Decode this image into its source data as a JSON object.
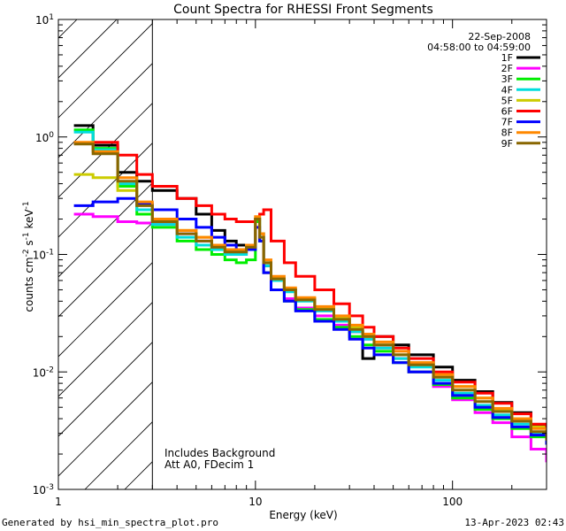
{
  "chart_data": {
    "type": "line",
    "title": "Count Spectra for RHESSI Front Segments",
    "xlabel": "Energy (keV)",
    "ylabel": "counts cm^-2 s^-1 keV^-1",
    "xscale": "log",
    "yscale": "log",
    "xlim": [
      1,
      300
    ],
    "ylim": [
      0.001,
      10
    ],
    "x_ticks": [
      1,
      10,
      100
    ],
    "x_tick_labels": [
      "1",
      "10",
      "100"
    ],
    "y_ticks": [
      0.001,
      0.01,
      0.1,
      1,
      10
    ],
    "y_tick_labels": [
      "10^-3",
      "10^-2",
      "10^-1",
      "10^0",
      "10^1"
    ],
    "hatched_region": [
      1,
      3
    ],
    "date": "22-Sep-2008",
    "time_range": "04:58:00 to 04:59:00",
    "annotations": [
      "Includes Background",
      "Att A0, FDecim 1"
    ],
    "series": [
      {
        "name": "1F",
        "color": "#000000",
        "x": [
          1.2,
          1.5,
          2,
          2.5,
          3,
          4,
          5,
          6,
          7,
          8,
          9,
          10,
          10.5,
          11,
          12,
          14,
          16,
          20,
          25,
          30,
          35,
          40,
          50,
          60,
          80,
          100,
          130,
          160,
          200,
          250,
          300
        ],
        "y": [
          1.25,
          0.85,
          0.5,
          0.42,
          0.35,
          0.3,
          0.22,
          0.16,
          0.13,
          0.12,
          0.11,
          0.2,
          0.15,
          0.08,
          0.06,
          0.05,
          0.042,
          0.035,
          0.028,
          0.022,
          0.013,
          0.02,
          0.017,
          0.014,
          0.011,
          0.0085,
          0.0068,
          0.0055,
          0.0045,
          0.0035,
          0.0025
        ]
      },
      {
        "name": "2F",
        "color": "#ff00ff",
        "x": [
          1.2,
          1.5,
          2,
          2.5,
          3,
          4,
          5,
          6,
          7,
          8,
          9,
          10,
          10.5,
          11,
          12,
          14,
          16,
          20,
          25,
          30,
          35,
          40,
          50,
          60,
          80,
          100,
          130,
          160,
          200,
          250,
          300
        ],
        "y": [
          0.22,
          0.21,
          0.19,
          0.185,
          0.18,
          0.15,
          0.13,
          0.11,
          0.1,
          0.1,
          0.11,
          0.17,
          0.13,
          0.07,
          0.05,
          0.042,
          0.035,
          0.03,
          0.025,
          0.022,
          0.019,
          0.016,
          0.013,
          0.01,
          0.0075,
          0.0058,
          0.0045,
          0.0037,
          0.0028,
          0.0022,
          0.0017
        ]
      },
      {
        "name": "3F",
        "color": "#00ee00",
        "x": [
          1.2,
          1.5,
          2,
          2.5,
          3,
          4,
          5,
          6,
          7,
          8,
          9,
          10,
          10.5,
          11,
          12,
          14,
          16,
          20,
          25,
          30,
          35,
          40,
          50,
          60,
          80,
          100,
          130,
          160,
          200,
          250,
          300
        ],
        "y": [
          1.15,
          0.8,
          0.38,
          0.22,
          0.17,
          0.13,
          0.11,
          0.1,
          0.09,
          0.085,
          0.09,
          0.19,
          0.13,
          0.07,
          0.05,
          0.04,
          0.034,
          0.028,
          0.024,
          0.02,
          0.017,
          0.015,
          0.012,
          0.01,
          0.0078,
          0.006,
          0.0048,
          0.004,
          0.0033,
          0.0028,
          0.0025
        ]
      },
      {
        "name": "4F",
        "color": "#00dddd",
        "x": [
          1.2,
          1.5,
          2,
          2.5,
          3,
          4,
          5,
          6,
          7,
          8,
          9,
          10,
          10.5,
          11,
          12,
          14,
          16,
          20,
          25,
          30,
          35,
          40,
          50,
          60,
          80,
          100,
          130,
          160,
          200,
          250,
          300
        ],
        "y": [
          1.1,
          0.78,
          0.4,
          0.24,
          0.18,
          0.14,
          0.12,
          0.11,
          0.1,
          0.1,
          0.11,
          0.2,
          0.14,
          0.08,
          0.06,
          0.048,
          0.04,
          0.033,
          0.027,
          0.022,
          0.019,
          0.016,
          0.013,
          0.011,
          0.0085,
          0.0066,
          0.0052,
          0.0043,
          0.0036,
          0.003,
          0.0026
        ]
      },
      {
        "name": "5F",
        "color": "#cccc00",
        "x": [
          1.2,
          1.5,
          2,
          2.5,
          3,
          4,
          5,
          6,
          7,
          8,
          9,
          10,
          10.5,
          11,
          12,
          14,
          16,
          20,
          25,
          30,
          35,
          40,
          50,
          60,
          80,
          100,
          130,
          160,
          200,
          250,
          300
        ],
        "y": [
          0.48,
          0.45,
          0.35,
          0.27,
          0.2,
          0.16,
          0.14,
          0.12,
          0.11,
          0.11,
          0.12,
          0.2,
          0.15,
          0.085,
          0.062,
          0.05,
          0.042,
          0.035,
          0.029,
          0.024,
          0.02,
          0.017,
          0.014,
          0.012,
          0.0095,
          0.0075,
          0.006,
          0.0048,
          0.004,
          0.0034,
          0.0028
        ]
      },
      {
        "name": "6F",
        "color": "#ff0000",
        "x": [
          1.2,
          1.5,
          2,
          2.5,
          3,
          4,
          5,
          6,
          7,
          8,
          9,
          10,
          10.5,
          11,
          12,
          14,
          16,
          20,
          25,
          30,
          35,
          40,
          50,
          60,
          80,
          100,
          130,
          160,
          200,
          250,
          300
        ],
        "y": [
          0.88,
          0.9,
          0.7,
          0.48,
          0.38,
          0.3,
          0.26,
          0.22,
          0.2,
          0.19,
          0.19,
          0.2,
          0.22,
          0.24,
          0.13,
          0.085,
          0.065,
          0.05,
          0.038,
          0.03,
          0.024,
          0.02,
          0.016,
          0.013,
          0.01,
          0.0082,
          0.0066,
          0.0054,
          0.0044,
          0.0036,
          0.0029
        ]
      },
      {
        "name": "7F",
        "color": "#0000ff",
        "x": [
          1.2,
          1.5,
          2,
          2.5,
          3,
          4,
          5,
          6,
          7,
          8,
          9,
          10,
          10.5,
          11,
          12,
          14,
          16,
          20,
          25,
          30,
          35,
          40,
          50,
          60,
          80,
          100,
          130,
          160,
          200,
          250,
          300
        ],
        "y": [
          0.26,
          0.28,
          0.3,
          0.27,
          0.24,
          0.2,
          0.17,
          0.14,
          0.12,
          0.11,
          0.11,
          0.17,
          0.13,
          0.07,
          0.05,
          0.04,
          0.033,
          0.027,
          0.023,
          0.019,
          0.016,
          0.014,
          0.012,
          0.01,
          0.008,
          0.0063,
          0.005,
          0.0041,
          0.0034,
          0.0029,
          0.0024
        ]
      },
      {
        "name": "8F",
        "color": "#ff8800",
        "x": [
          1.2,
          1.5,
          2,
          2.5,
          3,
          4,
          5,
          6,
          7,
          8,
          9,
          10,
          10.5,
          11,
          12,
          14,
          16,
          20,
          25,
          30,
          35,
          40,
          50,
          60,
          80,
          100,
          130,
          160,
          200,
          250,
          300
        ],
        "y": [
          0.9,
          0.75,
          0.45,
          0.28,
          0.2,
          0.16,
          0.14,
          0.12,
          0.11,
          0.11,
          0.12,
          0.21,
          0.15,
          0.09,
          0.065,
          0.052,
          0.043,
          0.036,
          0.03,
          0.025,
          0.021,
          0.018,
          0.015,
          0.012,
          0.0095,
          0.0075,
          0.006,
          0.0049,
          0.004,
          0.0033,
          0.0027
        ]
      },
      {
        "name": "9F",
        "color": "#886600",
        "x": [
          1.2,
          1.5,
          2,
          2.5,
          3,
          4,
          5,
          6,
          7,
          8,
          9,
          10,
          10.5,
          11,
          12,
          14,
          16,
          20,
          25,
          30,
          35,
          40,
          50,
          60,
          80,
          100,
          130,
          160,
          200,
          250,
          300
        ],
        "y": [
          0.87,
          0.72,
          0.42,
          0.26,
          0.19,
          0.15,
          0.13,
          0.115,
          0.105,
          0.105,
          0.115,
          0.2,
          0.14,
          0.085,
          0.062,
          0.05,
          0.041,
          0.034,
          0.028,
          0.023,
          0.02,
          0.017,
          0.014,
          0.0115,
          0.009,
          0.007,
          0.0056,
          0.0046,
          0.0038,
          0.0031,
          0.0026
        ]
      }
    ]
  },
  "footer": {
    "generated_by": "Generated by hsi_min_spectra_plot.pro",
    "timestamp": "13-Apr-2023 02:43"
  }
}
